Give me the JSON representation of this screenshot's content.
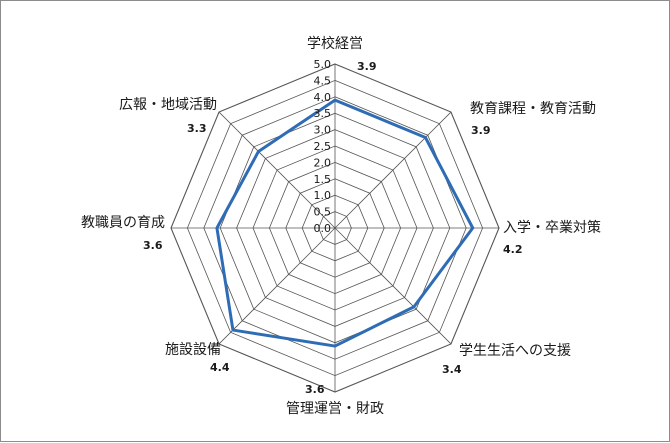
{
  "chart_data": {
    "type": "radar",
    "categories": [
      "学校経営",
      "教育課程・教育活動",
      "入学・卒業対策",
      "学生生活への支援",
      "管理運営・財政",
      "施設設備",
      "教職員の育成",
      "広報・地域活動"
    ],
    "value_labels": [
      "3.9",
      "3.9",
      "4.2",
      "3.4",
      "3.6",
      "4.4",
      "3.6",
      "3.3"
    ],
    "series": [
      {
        "values": [
          3.9,
          3.9,
          4.2,
          3.4,
          3.6,
          4.4,
          3.6,
          3.3
        ],
        "color": "#2e6cb5"
      }
    ],
    "rlim": [
      0,
      5
    ],
    "ticks": [
      "0.0",
      "0.5",
      "1.0",
      "1.5",
      "2.0",
      "2.5",
      "3.0",
      "3.5",
      "4.0",
      "4.5",
      "5.0"
    ],
    "grid": true,
    "grid_color": "#555555"
  }
}
